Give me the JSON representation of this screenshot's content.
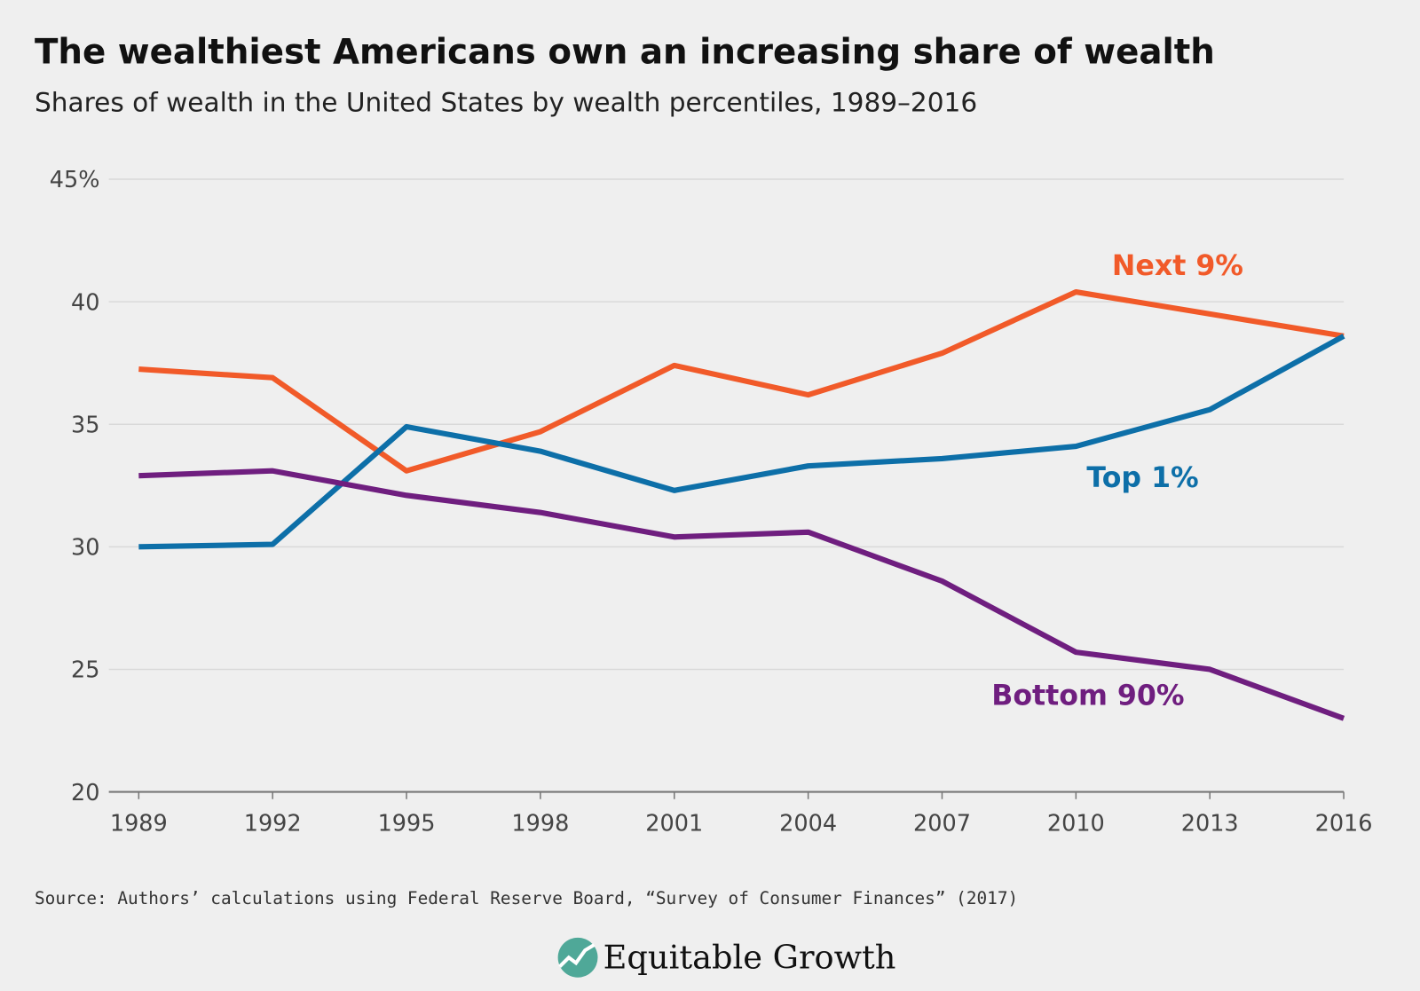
{
  "chart_data": {
    "type": "line",
    "title": "The wealthiest Americans own an increasing share of wealth",
    "subtitle": "Shares of wealth in the United States by wealth percentiles, 1989–2016",
    "x": [
      1989,
      1992,
      1995,
      1998,
      2001,
      2004,
      2007,
      2010,
      2013,
      2016
    ],
    "x_tick_labels": [
      "1989",
      "1992",
      "1995",
      "1998",
      "2001",
      "2004",
      "2007",
      "2010",
      "2013",
      "2016"
    ],
    "y_ticks": [
      20,
      25,
      30,
      35,
      40,
      45
    ],
    "y_tick_labels": [
      "20",
      "25",
      "30",
      "35",
      "40",
      "45%"
    ],
    "ylim": [
      20,
      45
    ],
    "grid": "horizontal",
    "series": [
      {
        "name": "Next 9%",
        "color": "#f15a29",
        "values": [
          37.25,
          36.9,
          33.1,
          34.7,
          37.4,
          36.2,
          37.9,
          40.4,
          39.5,
          38.6
        ]
      },
      {
        "name": "Top 1%",
        "color": "#0d6fa8",
        "values": [
          30.0,
          30.1,
          34.9,
          33.9,
          32.3,
          33.3,
          33.6,
          34.1,
          35.6,
          38.6
        ]
      },
      {
        "name": "Bottom 90%",
        "color": "#6f1e7f",
        "values": [
          32.9,
          33.1,
          32.1,
          31.4,
          30.4,
          30.6,
          28.6,
          25.7,
          25.0,
          23.0
        ]
      }
    ],
    "source": "Source: Authors’ calculations using Federal Reserve Board, “Survey of Consumer Finances” (2017)"
  },
  "logo": {
    "text": "Equitable Growth"
  }
}
